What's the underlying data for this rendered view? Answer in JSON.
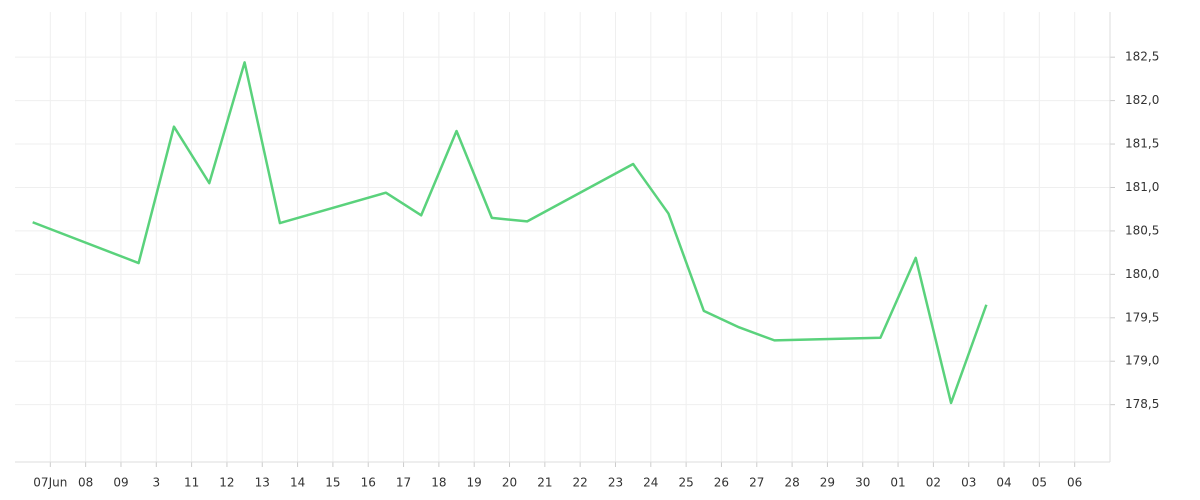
{
  "chart_data": {
    "type": "line",
    "x": [
      -0.5,
      2.5,
      3.5,
      4.5,
      5.5,
      6.5,
      9.5,
      10.5,
      11.5,
      12.5,
      13.5,
      16.5,
      17.5,
      18.5,
      19.5,
      20.5,
      23.5,
      24.5,
      25.5,
      26.5
    ],
    "series": [
      {
        "color": "#5ad27c",
        "values": [
          180.6,
          180.13,
          181.7,
          181.05,
          182.44,
          180.59,
          180.94,
          180.68,
          181.65,
          180.65,
          180.61,
          181.27,
          180.7,
          179.58,
          179.39,
          179.24,
          179.27,
          180.19,
          178.52,
          179.65
        ]
      }
    ],
    "xlim": [
      -1,
      30
    ],
    "xticks": [
      {
        "value": 0,
        "label": "07Jun"
      },
      {
        "value": 1,
        "label": "08"
      },
      {
        "value": 2,
        "label": "09"
      },
      3,
      {
        "value": 4,
        "label": "11"
      },
      {
        "value": 5,
        "label": "12"
      },
      {
        "value": 6,
        "label": "13"
      },
      {
        "value": 7,
        "label": "14"
      },
      {
        "value": 8,
        "label": "15"
      },
      {
        "value": 9,
        "label": "16"
      },
      {
        "value": 10,
        "label": "17"
      },
      {
        "value": 11,
        "label": "18"
      },
      {
        "value": 12,
        "label": "19"
      },
      {
        "value": 13,
        "label": "20"
      },
      {
        "value": 14,
        "label": "21"
      },
      {
        "value": 15,
        "label": "22"
      },
      {
        "value": 16,
        "label": "23"
      },
      {
        "value": 17,
        "label": "24"
      },
      {
        "value": 18,
        "label": "25"
      },
      {
        "value": 19,
        "label": "26"
      },
      {
        "value": 20,
        "label": "27"
      },
      {
        "value": 21,
        "label": "28"
      },
      {
        "value": 22,
        "label": "29"
      },
      {
        "value": 23,
        "label": "30"
      },
      {
        "value": 24,
        "label": "01"
      },
      {
        "value": 25,
        "label": "02"
      },
      {
        "value": 26,
        "label": "03"
      },
      {
        "value": 27,
        "label": "04"
      },
      {
        "value": 28,
        "label": "05"
      },
      {
        "value": 29,
        "label": "06"
      }
    ],
    "ylim": [
      177.84,
      183.02
    ],
    "yticks": [
      {
        "value": 178.5,
        "label": "178,5"
      },
      {
        "value": 179,
        "label": "179,0"
      },
      {
        "value": 179.5,
        "label": "179,5"
      },
      {
        "value": 180,
        "label": "180,0"
      },
      {
        "value": 180.5,
        "label": "180,5"
      },
      {
        "value": 181,
        "label": "181,0"
      },
      {
        "value": 181.5,
        "label": "181,5"
      },
      {
        "value": 182,
        "label": "182,0"
      },
      {
        "value": 182.5,
        "label": "182,5"
      }
    ],
    "grid": true
  }
}
